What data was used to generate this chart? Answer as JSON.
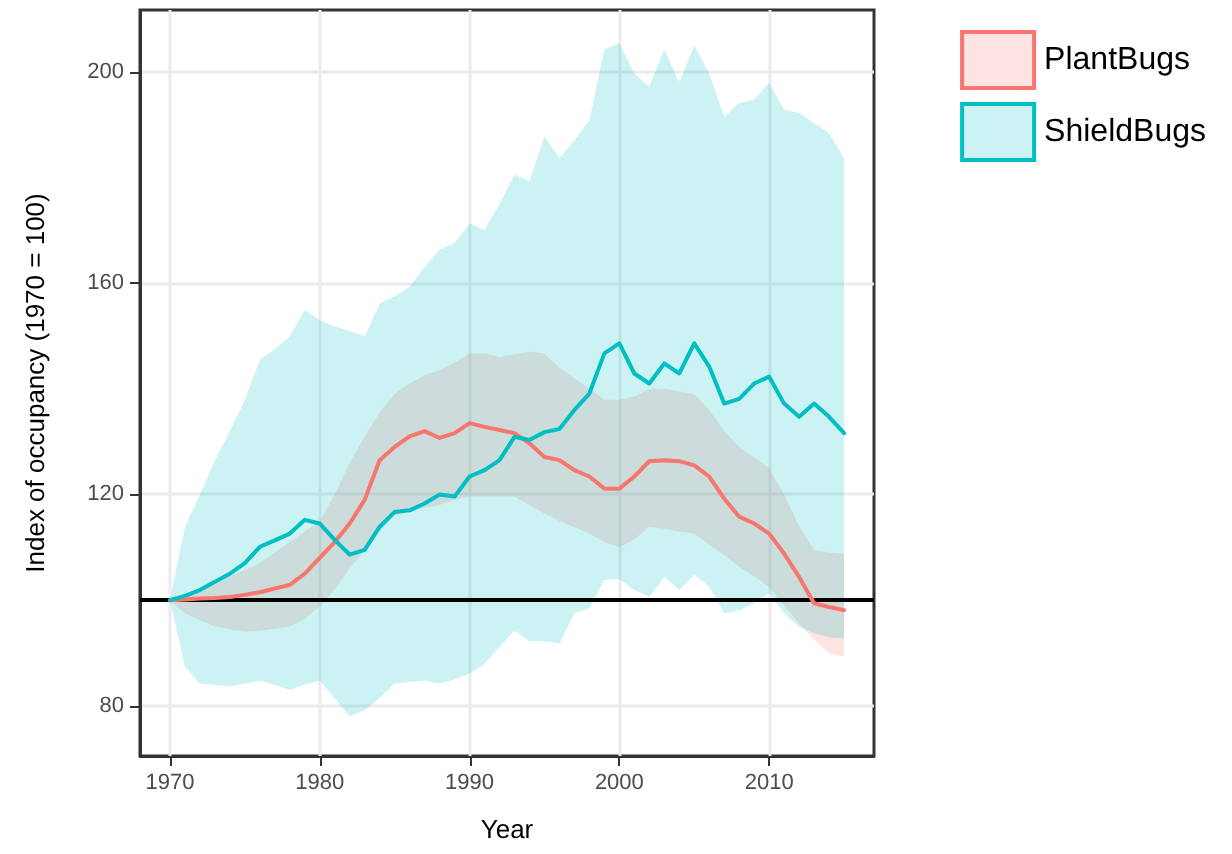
{
  "chart_data": {
    "type": "line",
    "xlabel": "Year",
    "ylabel": "Index of occupancy (1970 = 100)",
    "x": [
      1970,
      1971,
      1972,
      1973,
      1974,
      1975,
      1976,
      1977,
      1978,
      1979,
      1980,
      1981,
      1982,
      1983,
      1984,
      1985,
      1986,
      1987,
      1988,
      1989,
      1990,
      1991,
      1992,
      1993,
      1994,
      1995,
      1996,
      1997,
      1998,
      1999,
      2000,
      2001,
      2002,
      2003,
      2004,
      2005,
      2006,
      2007,
      2008,
      2009,
      2010,
      2011,
      2012,
      2013,
      2014,
      2015
    ],
    "series": [
      {
        "name": "PlantBugs",
        "color": "#f8766d",
        "values": [
          100,
          100.1,
          100.3,
          100.4,
          100.6,
          101,
          101.5,
          102.2,
          102.9,
          105,
          108,
          111,
          114.5,
          119,
          126.5,
          129,
          131,
          132,
          130.7,
          131.6,
          133.5,
          132.8,
          132.2,
          131.6,
          129.7,
          127.1,
          126.5,
          124.6,
          123.4,
          121.1,
          121.1,
          123.4,
          126.3,
          126.5,
          126.3,
          125.5,
          123.4,
          119.2,
          115.8,
          114.5,
          112.6,
          108.8,
          104.4,
          99.4,
          98.7,
          98.1
        ],
        "upper": [
          100,
          101,
          102,
          103,
          104.5,
          105.7,
          107,
          109,
          111,
          113,
          115,
          120,
          126,
          131,
          135.5,
          139,
          141,
          142.5,
          143.5,
          145,
          146.7,
          146.7,
          146,
          146.5,
          147,
          146.7,
          144,
          142,
          140,
          138,
          137.9,
          138.5,
          140,
          140,
          139.5,
          139,
          136,
          132,
          129,
          127,
          125,
          120,
          114,
          109.5,
          109,
          108.8
        ],
        "lower": [
          100,
          97.5,
          96.2,
          95,
          94.5,
          94,
          94.2,
          94.6,
          95,
          96.5,
          98.8,
          102,
          106,
          109.5,
          113,
          116,
          117,
          117.5,
          118,
          119,
          119.6,
          119.6,
          119.6,
          119.6,
          118,
          116.4,
          115,
          113.8,
          112.6,
          111,
          110,
          111.5,
          113.9,
          113.5,
          113,
          112.6,
          110.5,
          108.5,
          106.3,
          104.5,
          102.5,
          99,
          95.6,
          92.5,
          89.9,
          89.3
        ]
      },
      {
        "name": "ShieldBugs",
        "color": "#00bfc4",
        "values": [
          100,
          100.8,
          101.9,
          103.5,
          105,
          107,
          110.1,
          111.3,
          112.6,
          115.2,
          114.5,
          111.4,
          108.6,
          109.5,
          113.9,
          116.7,
          117,
          118.3,
          120,
          119.6,
          123.4,
          124.6,
          126.5,
          130.9,
          130.3,
          131.8,
          132.4,
          136,
          139.1,
          146.7,
          148.6,
          142.9,
          141,
          144.8,
          142.9,
          148.6,
          144.2,
          137.2,
          138.1,
          141,
          142.3,
          137.2,
          134.7,
          137.2,
          134.7,
          131.6
        ],
        "upper": [
          100,
          113.9,
          120,
          126.5,
          132,
          137.9,
          145.5,
          147.5,
          149.9,
          154.9,
          153,
          151.8,
          151,
          149.9,
          156.2,
          157.5,
          159.3,
          163,
          166.3,
          167.6,
          171.3,
          170.1,
          175,
          180.5,
          179.3,
          187.8,
          183.7,
          187,
          190.9,
          204.2,
          205.4,
          199.7,
          197.2,
          204.2,
          198,
          205,
          199.7,
          191.5,
          194.1,
          194.7,
          197.9,
          192.8,
          192.2,
          190.3,
          188.4,
          183.6
        ],
        "lower": [
          100,
          87.4,
          84.2,
          84,
          83.6,
          84.2,
          84.8,
          84,
          83,
          84,
          84.8,
          81.5,
          78,
          79.2,
          81.5,
          84.2,
          84.5,
          84.8,
          84.2,
          85,
          86.1,
          88,
          91.2,
          94.3,
          92.2,
          92.2,
          91.8,
          97.5,
          98.5,
          103.8,
          104,
          101.9,
          100.6,
          104.4,
          101.9,
          104.8,
          102.5,
          97.5,
          98.1,
          99.4,
          101.3,
          97.5,
          94.9,
          93.7,
          93,
          92.7
        ]
      }
    ],
    "xlim": [
      1968,
      2017
    ],
    "xticks": [
      1970,
      1980,
      1990,
      2000,
      2010
    ],
    "ylim": [
      70.5,
      211.7
    ],
    "yticks": [
      80,
      120,
      160,
      200
    ],
    "ref_lines": [
      {
        "axis": "y",
        "value": 100,
        "color": "#000000"
      }
    ],
    "grid": true,
    "legend": "right",
    "line_style": "solid"
  }
}
